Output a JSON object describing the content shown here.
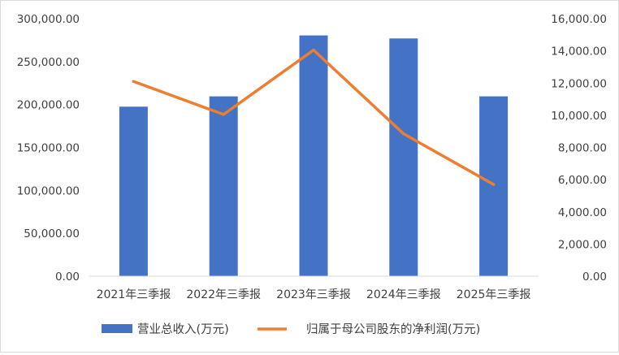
{
  "chart_data": {
    "type": "bar",
    "title": "",
    "categories": [
      "2021年三季报",
      "2022年三季报",
      "2023年三季报",
      "2024年三季报",
      "2025年三季报"
    ],
    "series": [
      {
        "name": "营业总收入(万元)",
        "type": "bar",
        "axis": "left",
        "color": "#4472C4",
        "values": [
          197500,
          209500,
          280500,
          277000,
          209500
        ]
      },
      {
        "name": "归属于母公司股东的净利润(万元)",
        "type": "line",
        "axis": "right",
        "color": "#ED7D31",
        "values": [
          12100,
          10050,
          14050,
          8850,
          5700
        ]
      }
    ],
    "y_left": {
      "lim": [
        0,
        300000
      ],
      "ticks": [
        "0.00",
        "50,000.00",
        "100,000.00",
        "150,000.00",
        "200,000.00",
        "250,000.00",
        "300,000.00"
      ]
    },
    "y_right": {
      "lim": [
        0,
        16000
      ],
      "ticks": [
        "0.00",
        "2,000.00",
        "4,000.00",
        "6,000.00",
        "8,000.00",
        "10,000.00",
        "12,000.00",
        "14,000.00",
        "16,000.00"
      ]
    },
    "grid": false,
    "legend_position": "bottom"
  }
}
